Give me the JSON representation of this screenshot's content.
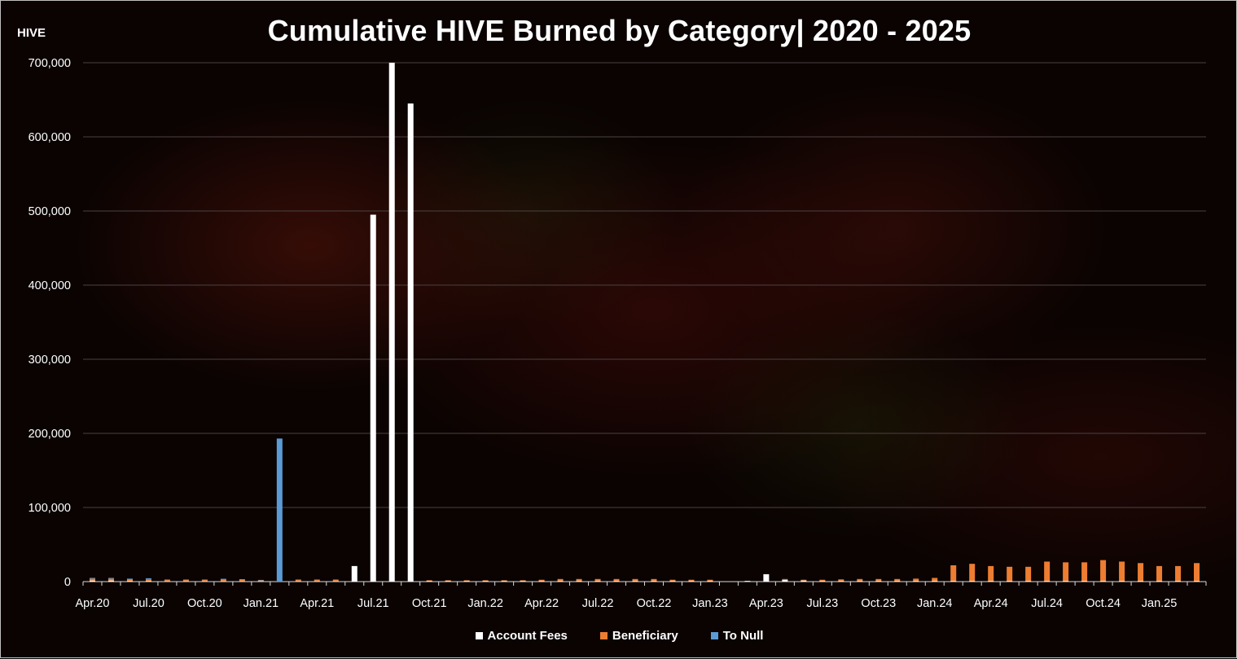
{
  "chart_data": {
    "type": "bar",
    "title": "Cumulative HIVE Burned by Category| 2020 - 2025",
    "ylabel": "HIVE",
    "xlabel": "",
    "ylim": [
      0,
      700000
    ],
    "yticks": [
      "0",
      "100,000",
      "200,000",
      "300,000",
      "400,000",
      "500,000",
      "600,000",
      "700,000"
    ],
    "grid": true,
    "legend_position": "bottom",
    "categories": [
      "Apr.20",
      "May.20",
      "Jun.20",
      "Jul.20",
      "Aug.20",
      "Sep.20",
      "Oct.20",
      "Nov.20",
      "Dec.20",
      "Jan.21",
      "Feb.21",
      "Mar.21",
      "Apr.21",
      "May.21",
      "Jun.21",
      "Jul.21",
      "Aug.21",
      "Sep.21",
      "Oct.21",
      "Nov.21",
      "Dec.21",
      "Jan.22",
      "Feb.22",
      "Mar.22",
      "Apr.22",
      "May.22",
      "Jun.22",
      "Jul.22",
      "Aug.22",
      "Sep.22",
      "Oct.22",
      "Nov.22",
      "Dec.22",
      "Jan.23",
      "Feb.23",
      "Mar.23",
      "Apr.23",
      "May.23",
      "Jun.23",
      "Jul.23",
      "Aug.23",
      "Sep.23",
      "Oct.23",
      "Nov.23",
      "Dec.23",
      "Jan.24",
      "Feb.24",
      "Mar.24",
      "Apr.24",
      "May.24",
      "Jun.24",
      "Jul.24",
      "Aug.24",
      "Sep.24",
      "Oct.24",
      "Nov.24",
      "Dec.24",
      "Jan.25",
      "Feb.25",
      "Mar.25"
    ],
    "xtick_labels": [
      "Apr.20",
      "Jul.20",
      "Oct.20",
      "Jan.21",
      "Apr.21",
      "Jul.21",
      "Oct.21",
      "Jan.22",
      "Apr.22",
      "Jul.22",
      "Oct.22",
      "Jan.23",
      "Apr.23",
      "Jul.23",
      "Oct.23",
      "Jan.24",
      "Apr.24",
      "Jul.24",
      "Oct.24",
      "Jan.25"
    ],
    "series": [
      {
        "name": "Account Fees",
        "color": "#ffffff",
        "values": [
          1500,
          1500,
          1000,
          1000,
          800,
          800,
          800,
          800,
          800,
          800,
          0,
          800,
          800,
          800,
          21000,
          495000,
          700000,
          645000,
          1000,
          1000,
          1000,
          1000,
          1000,
          1000,
          1000,
          1000,
          1000,
          1000,
          1000,
          1000,
          1000,
          1000,
          1000,
          1000,
          0,
          1000,
          10000,
          2500,
          1500,
          1000,
          1000,
          1000,
          1000,
          1000,
          1000,
          1000,
          1000,
          1000,
          1000,
          1000,
          1000,
          1000,
          1000,
          1000,
          1000,
          1000,
          1000,
          1000,
          1000,
          1000
        ]
      },
      {
        "name": "Beneficiary",
        "color": "#ed7d31",
        "values": [
          2500,
          2500,
          2500,
          1500,
          1500,
          1500,
          1500,
          2500,
          2000,
          1000,
          0,
          1500,
          1500,
          1500,
          0,
          0,
          0,
          0,
          800,
          800,
          800,
          800,
          800,
          800,
          1500,
          2500,
          2500,
          2500,
          2500,
          2500,
          2500,
          1500,
          1500,
          1500,
          0,
          0,
          0,
          1000,
          1000,
          1500,
          2000,
          2500,
          2500,
          2500,
          3000,
          4000,
          21000,
          23000,
          20000,
          19000,
          19000,
          26000,
          25000,
          25000,
          28000,
          26000,
          24000,
          20000,
          20000,
          24000
        ]
      },
      {
        "name": "To Null",
        "color": "#5b9bd5",
        "values": [
          1000,
          1000,
          500,
          2000,
          500,
          500,
          500,
          500,
          500,
          500,
          193000,
          500,
          500,
          500,
          0,
          0,
          0,
          0,
          0,
          0,
          0,
          0,
          0,
          0,
          0,
          0,
          0,
          0,
          0,
          0,
          0,
          0,
          0,
          0,
          0,
          0,
          0,
          0,
          0,
          0,
          0,
          0,
          0,
          0,
          0,
          0,
          0,
          0,
          0,
          0,
          0,
          0,
          0,
          0,
          0,
          0,
          0,
          0,
          0,
          0
        ]
      }
    ]
  }
}
